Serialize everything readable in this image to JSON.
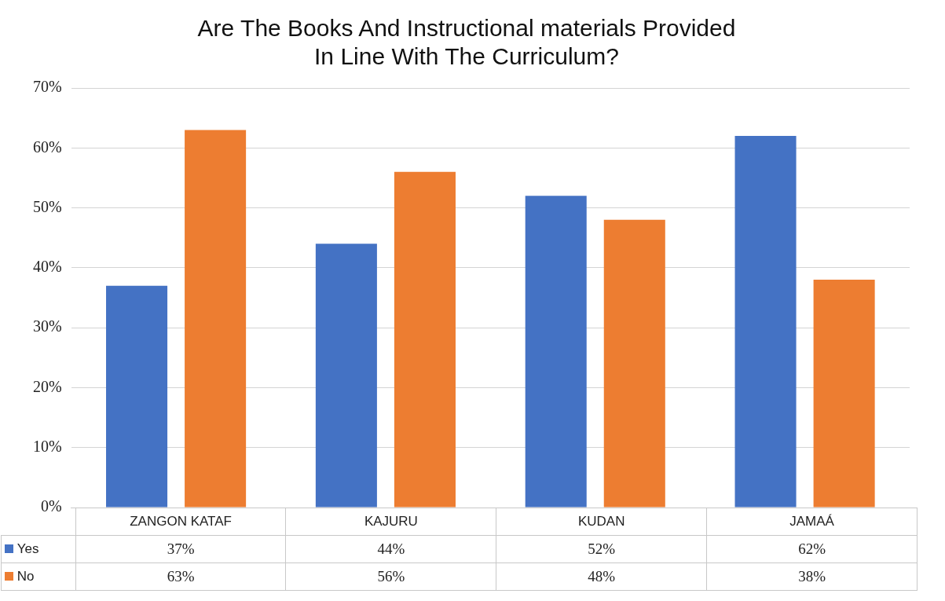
{
  "chart_data": {
    "type": "bar",
    "title": "Are The Books And Instructional materials Provided\nIn Line With The Curriculum?",
    "categories": [
      "ZANGON KATAF",
      "KAJURU",
      "KUDAN",
      "JAMAÁ"
    ],
    "series": [
      {
        "name": "Yes",
        "color": "#4472c4",
        "values": [
          37,
          44,
          52,
          62
        ],
        "value_labels": [
          "37%",
          "44%",
          "52%",
          "62%"
        ]
      },
      {
        "name": "No",
        "color": "#ed7d31",
        "values": [
          63,
          56,
          48,
          38
        ],
        "value_labels": [
          "63%",
          "56%",
          "48%",
          "38%"
        ]
      }
    ],
    "ylim": [
      0,
      70
    ],
    "yticks": [
      {
        "value": 0,
        "label": "0%"
      },
      {
        "value": 10,
        "label": "10%"
      },
      {
        "value": 20,
        "label": "20%"
      },
      {
        "value": 30,
        "label": "30%"
      },
      {
        "value": 40,
        "label": "40%"
      },
      {
        "value": 50,
        "label": "50%"
      },
      {
        "value": 60,
        "label": "60%"
      },
      {
        "value": 70,
        "label": "70%"
      }
    ],
    "grid": "y",
    "legend": "bottom"
  }
}
